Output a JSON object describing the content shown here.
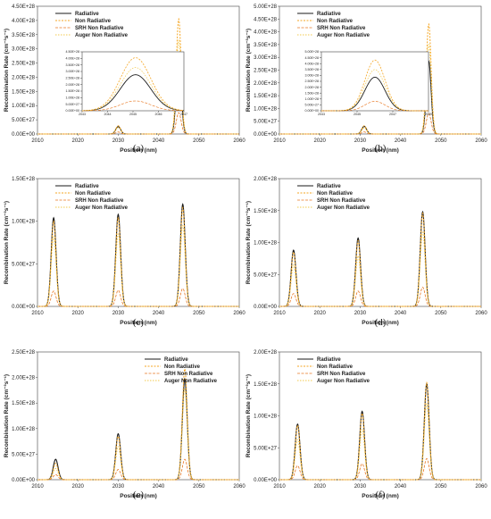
{
  "chart_data": [
    {
      "type": "line",
      "panel_label": "(a)",
      "xlabel": "Position (nm)",
      "ylabel": "Recombination Rate (cm⁻³s⁻¹)",
      "xlim": [
        2010,
        2060
      ],
      "ylim": [
        0,
        4.5e+28
      ],
      "x_ticks": [
        "2010",
        "2020",
        "2030",
        "2040",
        "2050",
        "2060"
      ],
      "y_ticks": [
        "0.00E+00",
        "5.00E+27",
        "1.00E+28",
        "1.50E+28",
        "2.00E+28",
        "2.50E+28",
        "3.00E+28",
        "3.50E+28",
        "4.00E+28",
        "4.50E+28"
      ],
      "legend": {
        "placement": "top-left",
        "entries": [
          "Radiative",
          "Non Radiative",
          "SRH Non Radiative",
          "Auger Non Radiative"
        ]
      },
      "peaks": [
        {
          "center": 2030,
          "width": 0.6,
          "radiative": 2.6e+27,
          "non_radiative": 2.9e+27,
          "srh": 7e+26,
          "auger": 2.3e+27
        },
        {
          "center": 2045,
          "width": 0.6,
          "radiative": 2.75e+28,
          "non_radiative": 4.05e+28,
          "srh": 7.5e+27,
          "auger": 3.3e+28
        }
      ],
      "inset": {
        "xlim": [
          2043,
          2047
        ],
        "ylim": [
          0,
          4.5e+28
        ],
        "x_ticks": [
          "2043",
          "2044",
          "2045",
          "2046",
          "2047"
        ],
        "y_ticks": [
          "0.00E+00",
          "5.00E+27",
          "1.00E+28",
          "1.50E+28",
          "2.00E+28",
          "2.50E+28",
          "3.00E+28",
          "3.50E+28",
          "4.00E+28",
          "4.50E+28"
        ],
        "center": 2045.1,
        "width": 0.6,
        "radiative": 2.75e+28,
        "non_radiative": 4.05e+28,
        "srh": 7.5e+27,
        "auger": 3.3e+28
      }
    },
    {
      "type": "line",
      "panel_label": "(b)",
      "xlabel": "Position (nm)",
      "ylabel": "Recombination Rate (cm⁻³s⁻¹)",
      "xlim": [
        2010,
        2060
      ],
      "ylim": [
        0,
        5e+28
      ],
      "x_ticks": [
        "2010",
        "2020",
        "2030",
        "2040",
        "2050",
        "2060"
      ],
      "y_ticks": [
        "0.00E+00",
        "5.00E+27",
        "1.00E+28",
        "1.50E+28",
        "2.00E+28",
        "2.50E+28",
        "3.00E+28",
        "3.50E+28",
        "4.00E+28",
        "4.50E+28",
        "5.00E+28"
      ],
      "legend": {
        "placement": "top-left",
        "entries": [
          "Radiative",
          "Non Radiative",
          "SRH Non Radiative",
          "Auger Non Radiative"
        ]
      },
      "peaks": [
        {
          "center": 2031,
          "width": 0.6,
          "radiative": 3e+27,
          "non_radiative": 3.2e+27,
          "srh": 8e+26,
          "auger": 2.4e+27
        },
        {
          "center": 2047,
          "width": 0.6,
          "radiative": 2.85e+28,
          "non_radiative": 4.3e+28,
          "srh": 8e+27,
          "auger": 3.5e+28
        }
      ],
      "inset": {
        "xlim": [
          2043,
          2051
        ],
        "ylim": [
          0,
          5e+28
        ],
        "x_ticks": [
          "2043",
          "2045",
          "2047",
          "2049"
        ],
        "y_ticks": [
          "0.00E+00",
          "5.00E+27",
          "1.00E+28",
          "1.50E+28",
          "2.00E+28",
          "2.50E+28",
          "3.00E+28",
          "3.50E+28",
          "4.00E+28",
          "4.50E+28",
          "5.00E+28"
        ],
        "center": 2047,
        "width": 0.75,
        "radiative": 2.85e+28,
        "non_radiative": 4.3e+28,
        "srh": 8e+27,
        "auger": 3.5e+28
      }
    },
    {
      "type": "line",
      "panel_label": "(c)",
      "xlabel": "Position (nm)",
      "ylabel": "Recombination Rate (cm⁻³s⁻¹)",
      "xlim": [
        2010,
        2060
      ],
      "ylim": [
        0,
        1.5e+28
      ],
      "x_ticks": [
        "2010",
        "2020",
        "2030",
        "2040",
        "2050",
        "2060"
      ],
      "y_ticks": [
        "0.00E+00",
        "5.00E+27",
        "1.00E+28",
        "1.50E+28"
      ],
      "legend": {
        "placement": "top-left",
        "entries": [
          "Radiative",
          "Non Radiative",
          "SRH Non Radiative",
          "Auger Non Radiative"
        ]
      },
      "peaks": [
        {
          "center": 2014,
          "width": 0.6,
          "radiative": 1.04e+28,
          "non_radiative": 1e+28,
          "srh": 1.8e+27,
          "auger": 8.2e+27
        },
        {
          "center": 2030,
          "width": 0.6,
          "radiative": 1.08e+28,
          "non_radiative": 1.04e+28,
          "srh": 1.9e+27,
          "auger": 8.5e+27
        },
        {
          "center": 2046,
          "width": 0.6,
          "radiative": 1.2e+28,
          "non_radiative": 1.16e+28,
          "srh": 2.1e+27,
          "auger": 9.5e+27
        }
      ]
    },
    {
      "type": "line",
      "panel_label": "(d)",
      "xlabel": "Position (nm)",
      "ylabel": "Recombination Rate (cm⁻³s⁻¹)",
      "xlim": [
        2010,
        2060
      ],
      "ylim": [
        0,
        2e+28
      ],
      "x_ticks": [
        "2010",
        "2020",
        "2030",
        "2040",
        "2050",
        "2060"
      ],
      "y_ticks": [
        "0.00E+00",
        "5.00E+27",
        "1.00E+28",
        "1.50E+28",
        "2.00E+28"
      ],
      "legend": {
        "placement": "top-left",
        "entries": [
          "Radiative",
          "Non Radiative",
          "SRH Non Radiative",
          "Auger Non Radiative"
        ]
      },
      "peaks": [
        {
          "center": 2013.5,
          "width": 0.6,
          "radiative": 8.8e+27,
          "non_radiative": 8.5e+27,
          "srh": 2e+27,
          "auger": 6.5e+27
        },
        {
          "center": 2029.5,
          "width": 0.6,
          "radiative": 1.07e+28,
          "non_radiative": 1.03e+28,
          "srh": 2.4e+27,
          "auger": 7.9e+27
        },
        {
          "center": 2045.5,
          "width": 0.6,
          "radiative": 1.48e+28,
          "non_radiative": 1.46e+28,
          "srh": 3e+27,
          "auger": 1.16e+28
        }
      ]
    },
    {
      "type": "line",
      "panel_label": "(e)",
      "xlabel": "Position (nm)",
      "ylabel": "Recombination Rate (cm⁻³s⁻¹)",
      "xlim": [
        2010,
        2060
      ],
      "ylim": [
        0,
        2.5e+28
      ],
      "x_ticks": [
        "2010",
        "2020",
        "2030",
        "2040",
        "2050",
        "2060"
      ],
      "y_ticks": [
        "0.00E+00",
        "5.00E+27",
        "1.00E+28",
        "1.50E+28",
        "2.00E+28",
        "2.50E+28"
      ],
      "legend": {
        "placement": "top-right",
        "entries": [
          "Radiative",
          "Non Radiative",
          "SRH Non Radiative",
          "Auger Non Radiative"
        ]
      },
      "peaks": [
        {
          "center": 2014.5,
          "width": 0.6,
          "radiative": 4e+27,
          "non_radiative": 3.2e+27,
          "srh": 1e+27,
          "auger": 2.2e+27
        },
        {
          "center": 2030,
          "width": 0.6,
          "radiative": 9e+27,
          "non_radiative": 8.5e+27,
          "srh": 2e+27,
          "auger": 6.5e+27
        },
        {
          "center": 2046.5,
          "width": 0.6,
          "radiative": 1.97e+28,
          "non_radiative": 2.17e+28,
          "srh": 4e+27,
          "auger": 1.77e+28
        }
      ]
    },
    {
      "type": "line",
      "panel_label": "(f)",
      "xlabel": "Position (nm)",
      "ylabel": "Recombination Rate (cm⁻³s⁻¹)",
      "xlim": [
        2010,
        2060
      ],
      "ylim": [
        0,
        2e+28
      ],
      "x_ticks": [
        "2010",
        "2020",
        "2030",
        "2040",
        "2050",
        "2060"
      ],
      "y_ticks": [
        "0.00E+00",
        "5.00E+27",
        "1.00E+28",
        "1.50E+28",
        "2.00E+28"
      ],
      "legend": {
        "placement": "top-left",
        "entries": [
          "Radiative",
          "Non Radiative",
          "SRH Non Radiative",
          "Auger Non Radiative"
        ]
      },
      "peaks": [
        {
          "center": 2014.5,
          "width": 0.6,
          "radiative": 8.7e+27,
          "non_radiative": 8.5e+27,
          "srh": 2.2e+27,
          "auger": 6.3e+27
        },
        {
          "center": 2030.5,
          "width": 0.6,
          "radiative": 1.07e+28,
          "non_radiative": 1.04e+28,
          "srh": 2.5e+27,
          "auger": 7.9e+27
        },
        {
          "center": 2046.5,
          "width": 0.6,
          "radiative": 1.5e+28,
          "non_radiative": 1.52e+28,
          "srh": 3.3e+27,
          "auger": 1.19e+28
        }
      ]
    }
  ],
  "series_colors": {
    "radiative": "#1a1a1a",
    "non_radiative": "#f5a623",
    "srh": "#e87722",
    "auger": "#f2c94c"
  }
}
